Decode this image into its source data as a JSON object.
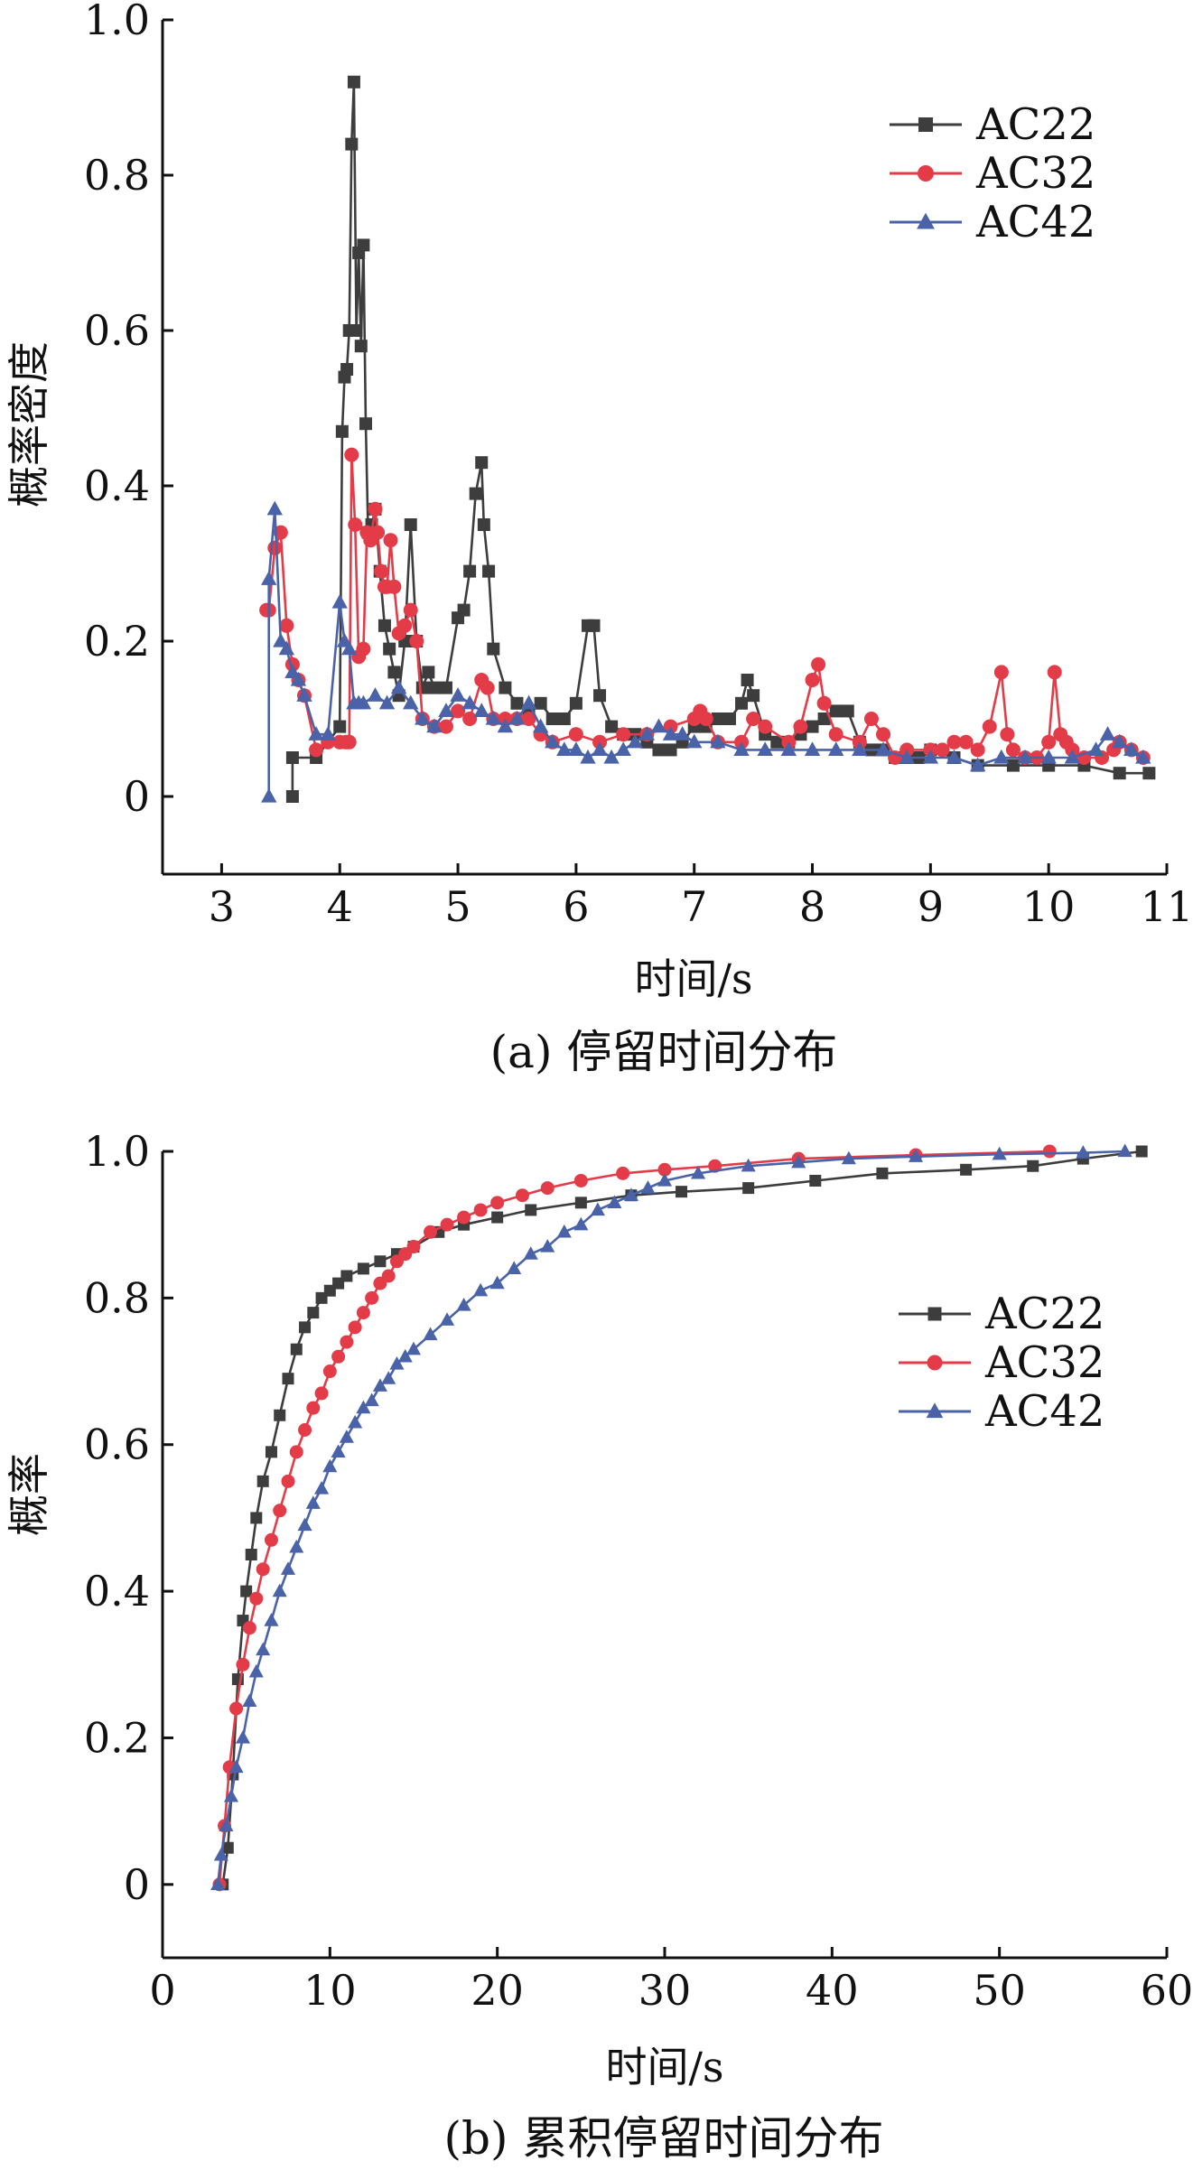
{
  "figure": {
    "panels": [
      {
        "caption": "(a) 停留时间分布",
        "xlabel": "时间/s",
        "ylabel": "概率密度",
        "xticks": [
          "3",
          "4",
          "5",
          "6",
          "7",
          "8",
          "9",
          "10",
          "11"
        ],
        "yticks": [
          "0",
          "0.2",
          "0.4",
          "0.6",
          "0.8",
          "1.0"
        ],
        "legend": [
          "AC22",
          "AC32",
          "AC42"
        ]
      },
      {
        "caption": "(b) 累积停留时间分布",
        "xlabel": "时间/s",
        "ylabel": "概率",
        "xticks": [
          "0",
          "10",
          "20",
          "30",
          "40",
          "50",
          "60"
        ],
        "yticks": [
          "0",
          "0.2",
          "0.4",
          "0.6",
          "0.8",
          "1.0"
        ],
        "legend": [
          "AC22",
          "AC32",
          "AC42"
        ]
      }
    ]
  },
  "chart_data": [
    {
      "type": "line",
      "title": "(a) 停留时间分布",
      "xlabel": "时间/s",
      "ylabel": "概率密度",
      "xlim": [
        2.5,
        11
      ],
      "ylim": [
        -0.1,
        1.0
      ],
      "legend_position": "top-right",
      "grid": false,
      "series": [
        {
          "name": "AC22",
          "color": "#3d3d3d",
          "marker": "square",
          "x": [
            3.6,
            3.6,
            3.8,
            4.0,
            4.02,
            4.04,
            4.06,
            4.08,
            4.1,
            4.12,
            4.14,
            4.16,
            4.18,
            4.2,
            4.22,
            4.24,
            4.27,
            4.3,
            4.34,
            4.38,
            4.42,
            4.46,
            4.5,
            4.55,
            4.6,
            4.65,
            4.7,
            4.75,
            4.8,
            4.9,
            5.0,
            5.05,
            5.1,
            5.15,
            5.2,
            5.22,
            5.26,
            5.3,
            5.4,
            5.5,
            5.6,
            5.7,
            5.8,
            5.9,
            6.0,
            6.1,
            6.15,
            6.2,
            6.3,
            6.4,
            6.5,
            6.6,
            6.7,
            6.8,
            6.9,
            7.0,
            7.1,
            7.2,
            7.3,
            7.4,
            7.45,
            7.5,
            7.6,
            7.7,
            7.8,
            7.9,
            8.0,
            8.1,
            8.2,
            8.3,
            8.4,
            8.5,
            8.6,
            8.7,
            8.8,
            8.9,
            9.0,
            9.2,
            9.4,
            9.7,
            10.0,
            10.3,
            10.6,
            10.85
          ],
          "y": [
            0.0,
            0.05,
            0.05,
            0.09,
            0.47,
            0.54,
            0.55,
            0.6,
            0.84,
            0.92,
            0.6,
            0.7,
            0.58,
            0.71,
            0.48,
            0.34,
            0.35,
            0.37,
            0.29,
            0.22,
            0.19,
            0.16,
            0.13,
            0.2,
            0.35,
            0.2,
            0.14,
            0.16,
            0.14,
            0.14,
            0.23,
            0.24,
            0.29,
            0.39,
            0.43,
            0.35,
            0.29,
            0.19,
            0.14,
            0.12,
            0.11,
            0.12,
            0.1,
            0.1,
            0.12,
            0.22,
            0.22,
            0.13,
            0.09,
            0.08,
            0.08,
            0.07,
            0.06,
            0.06,
            0.07,
            0.09,
            0.09,
            0.1,
            0.1,
            0.12,
            0.15,
            0.13,
            0.08,
            0.07,
            0.07,
            0.08,
            0.09,
            0.1,
            0.11,
            0.11,
            0.07,
            0.06,
            0.06,
            0.05,
            0.05,
            0.05,
            0.06,
            0.05,
            0.04,
            0.04,
            0.04,
            0.04,
            0.03,
            0.03
          ]
        },
        {
          "name": "AC32",
          "color": "#e33b47",
          "marker": "circle",
          "x": [
            3.38,
            3.4,
            3.45,
            3.5,
            3.55,
            3.6,
            3.65,
            3.7,
            3.8,
            3.9,
            4.0,
            4.05,
            4.08,
            4.1,
            4.13,
            4.16,
            4.2,
            4.23,
            4.26,
            4.3,
            4.32,
            4.35,
            4.38,
            4.4,
            4.43,
            4.46,
            4.5,
            4.55,
            4.6,
            4.65,
            4.7,
            4.8,
            4.9,
            5.0,
            5.1,
            5.2,
            5.25,
            5.3,
            5.4,
            5.5,
            5.6,
            5.7,
            5.8,
            6.0,
            6.2,
            6.4,
            6.6,
            6.8,
            7.0,
            7.05,
            7.1,
            7.2,
            7.4,
            7.5,
            7.6,
            7.8,
            7.9,
            8.0,
            8.05,
            8.1,
            8.2,
            8.4,
            8.5,
            8.6,
            8.7,
            8.8,
            9.0,
            9.1,
            9.2,
            9.3,
            9.4,
            9.5,
            9.6,
            9.65,
            9.7,
            9.8,
            9.9,
            10.0,
            10.05,
            10.1,
            10.15,
            10.2,
            10.3,
            10.45,
            10.55,
            10.6,
            10.7,
            10.8
          ],
          "y": [
            0.24,
            0.24,
            0.32,
            0.34,
            0.22,
            0.17,
            0.15,
            0.13,
            0.06,
            0.07,
            0.07,
            0.07,
            0.07,
            0.44,
            0.35,
            0.18,
            0.19,
            0.34,
            0.33,
            0.37,
            0.34,
            0.29,
            0.27,
            0.27,
            0.33,
            0.27,
            0.21,
            0.22,
            0.24,
            0.2,
            0.1,
            0.09,
            0.09,
            0.11,
            0.1,
            0.15,
            0.14,
            0.1,
            0.1,
            0.1,
            0.1,
            0.08,
            0.07,
            0.08,
            0.07,
            0.08,
            0.08,
            0.09,
            0.1,
            0.11,
            0.1,
            0.07,
            0.07,
            0.1,
            0.09,
            0.07,
            0.09,
            0.15,
            0.17,
            0.12,
            0.08,
            0.07,
            0.1,
            0.08,
            0.05,
            0.06,
            0.06,
            0.06,
            0.07,
            0.07,
            0.06,
            0.09,
            0.16,
            0.08,
            0.06,
            0.05,
            0.05,
            0.07,
            0.16,
            0.08,
            0.07,
            0.06,
            0.05,
            0.05,
            0.06,
            0.07,
            0.06,
            0.05
          ]
        },
        {
          "name": "AC42",
          "color": "#4a62a8",
          "marker": "triangle",
          "x": [
            3.4,
            3.4,
            3.45,
            3.5,
            3.55,
            3.6,
            3.65,
            3.7,
            3.8,
            3.9,
            4.0,
            4.04,
            4.08,
            4.12,
            4.16,
            4.2,
            4.3,
            4.4,
            4.5,
            4.6,
            4.7,
            4.8,
            4.9,
            5.0,
            5.1,
            5.2,
            5.3,
            5.4,
            5.5,
            5.6,
            5.7,
            5.8,
            5.9,
            6.0,
            6.1,
            6.2,
            6.3,
            6.4,
            6.5,
            6.6,
            6.7,
            6.8,
            6.9,
            7.0,
            7.2,
            7.4,
            7.6,
            7.8,
            8.0,
            8.2,
            8.4,
            8.6,
            8.8,
            9.0,
            9.2,
            9.4,
            9.6,
            9.8,
            10.0,
            10.2,
            10.4,
            10.5,
            10.6,
            10.7,
            10.8
          ],
          "y": [
            0.0,
            0.28,
            0.37,
            0.2,
            0.19,
            0.16,
            0.15,
            0.13,
            0.08,
            0.08,
            0.25,
            0.2,
            0.19,
            0.12,
            0.12,
            0.12,
            0.13,
            0.12,
            0.14,
            0.12,
            0.1,
            0.09,
            0.11,
            0.13,
            0.12,
            0.11,
            0.1,
            0.09,
            0.1,
            0.12,
            0.09,
            0.07,
            0.06,
            0.06,
            0.05,
            0.06,
            0.05,
            0.06,
            0.07,
            0.08,
            0.09,
            0.08,
            0.08,
            0.07,
            0.07,
            0.06,
            0.06,
            0.06,
            0.06,
            0.06,
            0.06,
            0.06,
            0.05,
            0.05,
            0.05,
            0.04,
            0.05,
            0.05,
            0.05,
            0.05,
            0.06,
            0.08,
            0.07,
            0.06,
            0.05
          ]
        }
      ]
    },
    {
      "type": "line",
      "title": "(b) 累积停留时间分布",
      "xlabel": "时间/s",
      "ylabel": "概率",
      "xlim": [
        0,
        60
      ],
      "ylim": [
        -0.1,
        1.0
      ],
      "legend_position": "right",
      "grid": false,
      "series": [
        {
          "name": "AC22",
          "color": "#3d3d3d",
          "marker": "square",
          "x": [
            3.6,
            3.9,
            4.2,
            4.5,
            4.8,
            5.0,
            5.3,
            5.6,
            6.0,
            6.5,
            7.0,
            7.5,
            8.0,
            8.5,
            9.0,
            9.5,
            10.0,
            10.5,
            11.0,
            12.0,
            13.0,
            14.0,
            15.0,
            16.5,
            18.0,
            20.0,
            22.0,
            25.0,
            28.0,
            31.0,
            35.0,
            39.0,
            43.0,
            48.0,
            52.0,
            55.0,
            58.5
          ],
          "y": [
            0.0,
            0.05,
            0.15,
            0.28,
            0.36,
            0.4,
            0.45,
            0.5,
            0.55,
            0.59,
            0.64,
            0.69,
            0.73,
            0.76,
            0.78,
            0.8,
            0.81,
            0.82,
            0.83,
            0.84,
            0.85,
            0.86,
            0.87,
            0.89,
            0.9,
            0.91,
            0.92,
            0.93,
            0.94,
            0.945,
            0.95,
            0.96,
            0.97,
            0.975,
            0.98,
            0.99,
            1.0
          ]
        },
        {
          "name": "AC32",
          "color": "#e33b47",
          "marker": "circle",
          "x": [
            3.4,
            3.7,
            4.0,
            4.4,
            4.8,
            5.2,
            5.6,
            6.0,
            6.5,
            7.0,
            7.5,
            8.0,
            8.5,
            9.0,
            9.5,
            10.0,
            10.5,
            11.0,
            11.5,
            12.0,
            12.5,
            13.0,
            13.5,
            14.0,
            14.5,
            15.0,
            16.0,
            17.0,
            18.0,
            19.0,
            20.0,
            21.5,
            23.0,
            25.0,
            27.5,
            30.0,
            33.0,
            38.0,
            45.0,
            53.0
          ],
          "y": [
            0.0,
            0.08,
            0.16,
            0.24,
            0.3,
            0.35,
            0.39,
            0.43,
            0.47,
            0.51,
            0.55,
            0.59,
            0.62,
            0.65,
            0.67,
            0.7,
            0.72,
            0.74,
            0.76,
            0.78,
            0.8,
            0.82,
            0.83,
            0.85,
            0.86,
            0.87,
            0.89,
            0.9,
            0.91,
            0.92,
            0.93,
            0.94,
            0.95,
            0.96,
            0.97,
            0.975,
            0.98,
            0.99,
            0.995,
            1.0
          ]
        },
        {
          "name": "AC42",
          "color": "#4a62a8",
          "marker": "triangle",
          "x": [
            3.3,
            3.5,
            3.8,
            4.1,
            4.4,
            4.8,
            5.2,
            5.6,
            6.0,
            6.5,
            7.0,
            7.5,
            8.0,
            8.5,
            9.0,
            9.5,
            10.0,
            10.5,
            11.0,
            11.5,
            12.0,
            12.5,
            13.0,
            13.5,
            14.0,
            14.5,
            15.0,
            16.0,
            17.0,
            18.0,
            19.0,
            20.0,
            21.0,
            22.0,
            23.0,
            24.0,
            25.0,
            26.0,
            27.0,
            28.0,
            29.0,
            30.0,
            32.0,
            35.0,
            38.0,
            41.0,
            45.0,
            50.0,
            55.0,
            57.5
          ],
          "y": [
            0.0,
            0.04,
            0.08,
            0.12,
            0.16,
            0.2,
            0.25,
            0.29,
            0.32,
            0.36,
            0.4,
            0.43,
            0.46,
            0.49,
            0.52,
            0.54,
            0.57,
            0.59,
            0.61,
            0.63,
            0.65,
            0.66,
            0.68,
            0.69,
            0.71,
            0.72,
            0.73,
            0.75,
            0.77,
            0.79,
            0.81,
            0.82,
            0.84,
            0.86,
            0.87,
            0.89,
            0.9,
            0.92,
            0.93,
            0.94,
            0.95,
            0.96,
            0.97,
            0.98,
            0.985,
            0.99,
            0.993,
            0.996,
            0.998,
            1.0
          ]
        }
      ]
    }
  ]
}
